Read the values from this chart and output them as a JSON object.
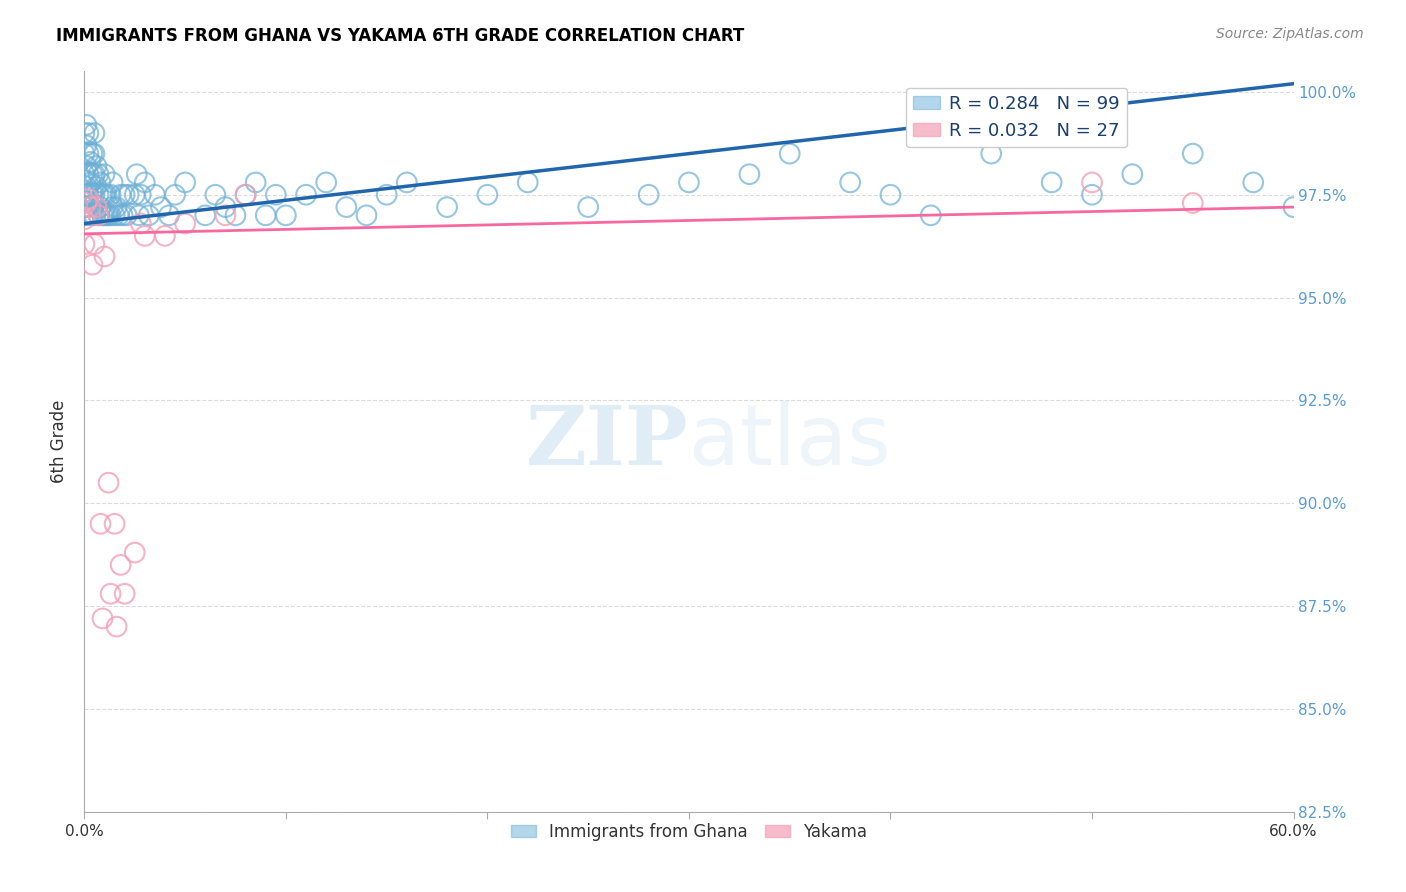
{
  "title": "IMMIGRANTS FROM GHANA VS YAKAMA 6TH GRADE CORRELATION CHART",
  "source": "Source: ZipAtlas.com",
  "ylabel": "6th Grade",
  "legend_blue_label": "R = 0.284   N = 99",
  "legend_pink_label": "R = 0.032   N = 27",
  "legend_bottom_blue": "Immigrants from Ghana",
  "legend_bottom_pink": "Yakama",
  "watermark_zip": "ZIP",
  "watermark_atlas": "atlas",
  "blue_color": "#6baed6",
  "pink_color": "#f4a0b5",
  "blue_line_color": "#2166ac",
  "pink_line_color": "#f768a1",
  "blue_scatter_x": [
    0.0,
    0.0,
    0.0,
    0.0,
    0.0,
    0.001,
    0.001,
    0.001,
    0.001,
    0.001,
    0.002,
    0.002,
    0.002,
    0.002,
    0.002,
    0.003,
    0.003,
    0.003,
    0.004,
    0.004,
    0.004,
    0.004,
    0.005,
    0.005,
    0.005,
    0.005,
    0.005,
    0.006,
    0.006,
    0.006,
    0.007,
    0.007,
    0.007,
    0.008,
    0.008,
    0.009,
    0.009,
    0.01,
    0.01,
    0.01,
    0.011,
    0.011,
    0.012,
    0.013,
    0.013,
    0.014,
    0.014,
    0.015,
    0.016,
    0.017,
    0.018,
    0.019,
    0.02,
    0.021,
    0.022,
    0.025,
    0.026,
    0.027,
    0.028,
    0.03,
    0.032,
    0.035,
    0.038,
    0.042,
    0.045,
    0.05,
    0.06,
    0.065,
    0.07,
    0.075,
    0.08,
    0.085,
    0.09,
    0.095,
    0.1,
    0.11,
    0.12,
    0.13,
    0.14,
    0.15,
    0.16,
    0.18,
    0.2,
    0.22,
    0.25,
    0.28,
    0.3,
    0.33,
    0.35,
    0.38,
    0.4,
    0.42,
    0.45,
    0.48,
    0.5,
    0.52,
    0.55,
    0.58,
    0.6
  ],
  "blue_scatter_y": [
    0.97,
    0.975,
    0.98,
    0.985,
    0.99,
    0.972,
    0.977,
    0.982,
    0.987,
    0.992,
    0.97,
    0.975,
    0.98,
    0.985,
    0.99,
    0.972,
    0.978,
    0.983,
    0.97,
    0.975,
    0.98,
    0.985,
    0.97,
    0.975,
    0.98,
    0.985,
    0.99,
    0.972,
    0.977,
    0.982,
    0.97,
    0.975,
    0.98,
    0.972,
    0.978,
    0.97,
    0.975,
    0.97,
    0.975,
    0.98,
    0.97,
    0.975,
    0.97,
    0.97,
    0.975,
    0.972,
    0.978,
    0.97,
    0.972,
    0.97,
    0.975,
    0.97,
    0.975,
    0.97,
    0.975,
    0.975,
    0.98,
    0.97,
    0.975,
    0.978,
    0.97,
    0.975,
    0.972,
    0.97,
    0.975,
    0.978,
    0.97,
    0.975,
    0.972,
    0.97,
    0.975,
    0.978,
    0.97,
    0.975,
    0.97,
    0.975,
    0.978,
    0.972,
    0.97,
    0.975,
    0.978,
    0.972,
    0.975,
    0.978,
    0.972,
    0.975,
    0.978,
    0.98,
    0.985,
    0.978,
    0.975,
    0.97,
    0.985,
    0.978,
    0.975,
    0.98,
    0.985,
    0.978,
    0.972
  ],
  "pink_scatter_x": [
    0.0,
    0.0,
    0.001,
    0.002,
    0.003,
    0.004,
    0.005,
    0.006,
    0.007,
    0.008,
    0.009,
    0.01,
    0.012,
    0.013,
    0.015,
    0.016,
    0.018,
    0.02,
    0.025,
    0.028,
    0.03,
    0.04,
    0.05,
    0.07,
    0.08,
    0.5,
    0.55
  ],
  "pink_scatter_y": [
    0.969,
    0.963,
    0.973,
    0.974,
    0.972,
    0.958,
    0.963,
    0.972,
    0.97,
    0.895,
    0.872,
    0.96,
    0.905,
    0.878,
    0.895,
    0.87,
    0.885,
    0.878,
    0.888,
    0.968,
    0.965,
    0.965,
    0.968,
    0.97,
    0.975,
    0.978,
    0.973
  ],
  "blue_trend_x": [
    0.0,
    0.6
  ],
  "blue_trend_y": [
    0.968,
    1.002
  ],
  "pink_trend_x": [
    0.0,
    0.6
  ],
  "pink_trend_y": [
    0.9655,
    0.972
  ],
  "xmin": 0.0,
  "xmax": 0.6,
  "ymin": 0.825,
  "ymax": 1.005,
  "ytick_vals": [
    0.825,
    0.85,
    0.875,
    0.9,
    0.925,
    0.95,
    0.975,
    1.0
  ],
  "ytick_labels": [
    "82.5%",
    "85.0%",
    "87.5%",
    "90.0%",
    "92.5%",
    "95.0%",
    "97.5%",
    "100.0%"
  ],
  "background_color": "#ffffff",
  "grid_color": "#cccccc",
  "title_color": "#000000",
  "right_axis_color": "#5b9bd5",
  "legend_text_color": "#1a3f6e"
}
